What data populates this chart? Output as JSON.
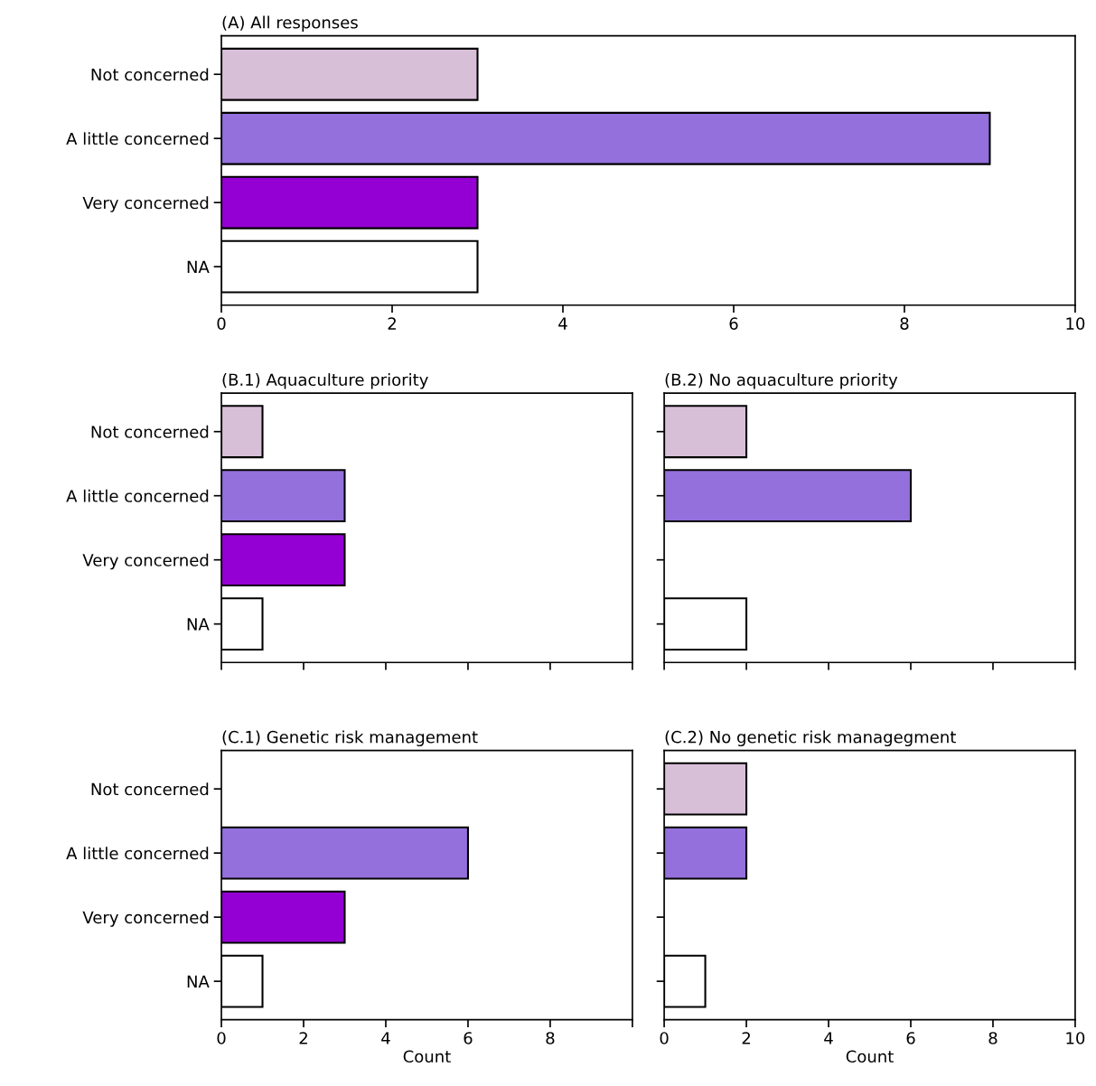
{
  "chart_data": [
    {
      "type": "bar",
      "orientation": "horizontal",
      "title": "(A) All responses",
      "categories": [
        "Not concerned",
        "A little concerned",
        "Very concerned",
        "NA"
      ],
      "values": [
        3,
        9,
        3,
        3
      ],
      "colors": [
        "#d8bfd8",
        "#9370db",
        "#9400d3",
        "#ffffff"
      ],
      "xlim": [
        0,
        10
      ],
      "xticks": [
        0,
        2,
        4,
        6,
        8,
        10
      ],
      "grid": false,
      "legend": false
    },
    {
      "type": "bar",
      "orientation": "horizontal",
      "title": "(B.1) Aquaculture priority",
      "categories": [
        "Not concerned",
        "A little concerned",
        "Very concerned",
        "NA"
      ],
      "values": [
        1,
        3,
        3,
        1
      ],
      "colors": [
        "#d8bfd8",
        "#9370db",
        "#9400d3",
        "#ffffff"
      ],
      "xlim": [
        0,
        10
      ],
      "xticks": [
        0,
        2,
        4,
        6,
        8,
        10
      ],
      "tick_labels": "y",
      "grid": false,
      "legend": false
    },
    {
      "type": "bar",
      "orientation": "horizontal",
      "title": "(B.2) No aquaculture priority",
      "categories": [
        null,
        null,
        null,
        null
      ],
      "values": [
        2,
        6,
        null,
        2
      ],
      "colors": [
        "#d8bfd8",
        "#9370db",
        "#9400d3",
        "#ffffff"
      ],
      "xlim": [
        0,
        10
      ],
      "xticks": [
        0,
        2,
        4,
        6,
        8,
        10
      ],
      "tick_labels": false,
      "grid": false,
      "legend": false
    },
    {
      "type": "bar",
      "orientation": "horizontal",
      "title": "(C.1) Genetic risk management",
      "xlabel": "Count",
      "categories": [
        "Not concerned",
        "A little concerned",
        "Very concerned",
        "NA"
      ],
      "values": [
        null,
        6,
        3,
        1
      ],
      "colors": [
        "#d8bfd8",
        "#9370db",
        "#9400d3",
        "#ffffff"
      ],
      "xlim": [
        0,
        10
      ],
      "xticks": [
        0,
        2,
        4,
        6,
        8,
        {
          "value": 10,
          "label": null
        }
      ],
      "grid": false,
      "legend": false
    },
    {
      "type": "bar",
      "orientation": "horizontal",
      "title": "(C.2) No genetic risk managegment",
      "xlabel": "Count",
      "categories": [
        null,
        null,
        null,
        null
      ],
      "values": [
        2,
        2,
        null,
        1
      ],
      "colors": [
        "#d8bfd8",
        "#9370db",
        "#9400d3",
        "#ffffff"
      ],
      "xlim": [
        0,
        10
      ],
      "xticks": [
        0,
        2,
        4,
        6,
        8,
        10
      ],
      "tick_labels": "x",
      "grid": false,
      "legend": false
    }
  ]
}
